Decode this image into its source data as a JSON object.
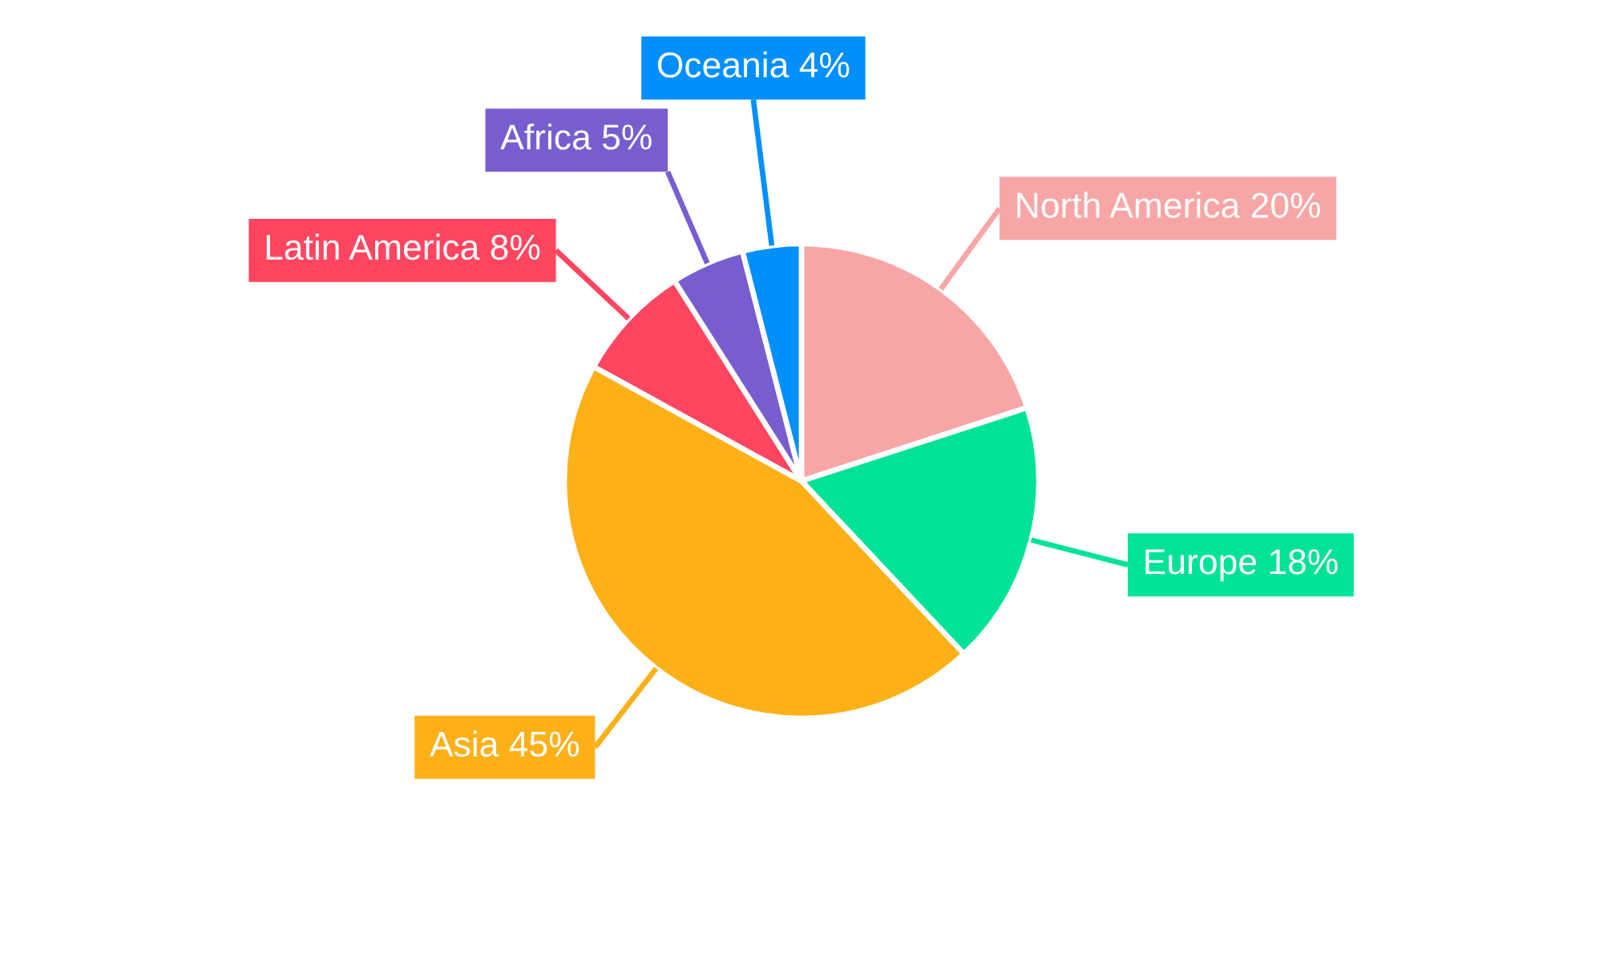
{
  "chart_data": {
    "type": "pie",
    "categories": [
      "North America",
      "Europe",
      "Asia",
      "Latin America",
      "Africa",
      "Oceania"
    ],
    "values": [
      20,
      18,
      45,
      8,
      5,
      4
    ],
    "value_labels": [
      "20%",
      "18%",
      "45%",
      "8%",
      "5%",
      "4%"
    ],
    "colors": [
      "#f8a5a6",
      "#00e396",
      "#feb019",
      "#ff4560",
      "#775dd0",
      "#008ffb"
    ]
  }
}
